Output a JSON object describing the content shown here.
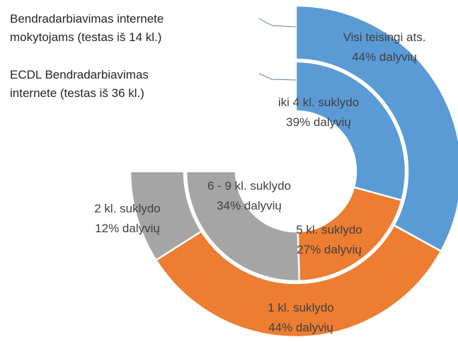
{
  "chart_data": {
    "type": "doughnut",
    "series": [
      {
        "name": "Bendradarbiavimas internete mokytojams (testas iš 14 kl.)",
        "categories": [
          "Visi teisingi ats.",
          "1 kl. suklydo",
          "2 kl. suklydo"
        ],
        "values": [
          44,
          44,
          12
        ],
        "value_labels": [
          "44% dalyvių",
          "44% dalyvių",
          "12% dalyvių"
        ],
        "colors": [
          "#5b9bd5",
          "#ed7d31",
          "#a5a5a5"
        ]
      },
      {
        "name": "ECDL Bendradarbiavimas internete (testas iš 36 kl.)",
        "categories": [
          "iki 4 kl. suklydo",
          "5 kl. suklydo",
          "6 - 9 kl. suklydo"
        ],
        "values": [
          39,
          27,
          34
        ],
        "value_labels": [
          "39% dalyvių",
          "27% dalyvių",
          "34% dalyvių"
        ],
        "colors": [
          "#5b9bd5",
          "#ed7d31",
          "#a5a5a5"
        ]
      }
    ]
  }
}
